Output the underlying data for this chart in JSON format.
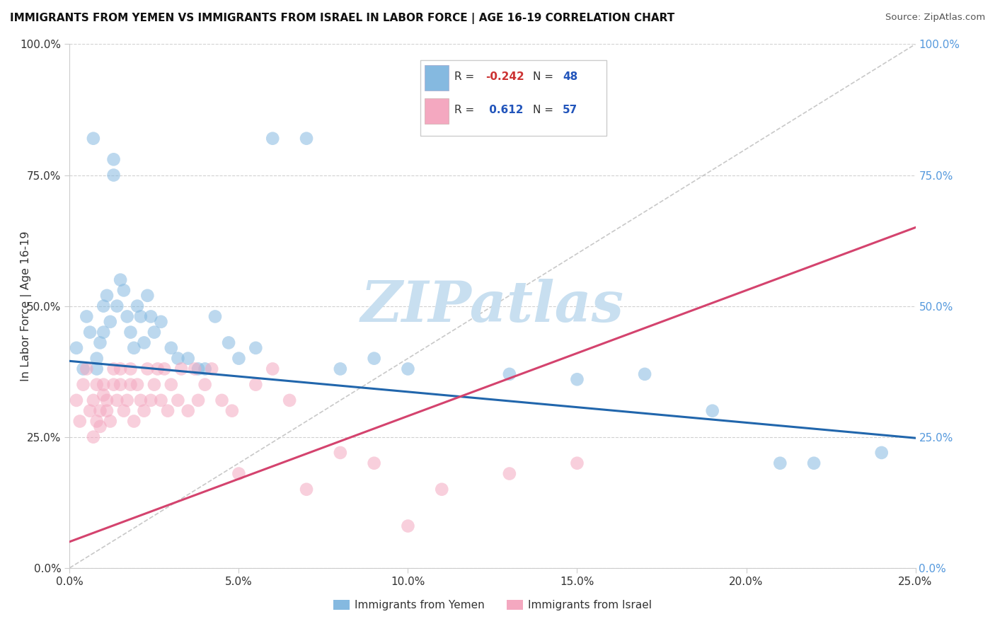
{
  "title": "IMMIGRANTS FROM YEMEN VS IMMIGRANTS FROM ISRAEL IN LABOR FORCE | AGE 16-19 CORRELATION CHART",
  "source": "Source: ZipAtlas.com",
  "ylabel": "In Labor Force | Age 16-19",
  "xlim": [
    0.0,
    0.25
  ],
  "ylim": [
    0.0,
    1.0
  ],
  "xlabel_vals": [
    0.0,
    0.05,
    0.1,
    0.15,
    0.2,
    0.25
  ],
  "xlabel_labels": [
    "0.0%",
    "5.0%",
    "10.0%",
    "15.0%",
    "20.0%",
    "25.0%"
  ],
  "ylabel_vals": [
    0.0,
    0.25,
    0.5,
    0.75,
    1.0
  ],
  "ylabel_labels": [
    "0.0%",
    "25.0%",
    "50.0%",
    "75.0%",
    "100.0%"
  ],
  "blue_R": -0.242,
  "blue_N": 48,
  "pink_R": 0.612,
  "pink_N": 57,
  "blue_label": "Immigrants from Yemen",
  "pink_label": "Immigrants from Israel",
  "blue_scatter_color": "#85b9e0",
  "pink_scatter_color": "#f4a8c0",
  "blue_trend_color": "#2166ac",
  "pink_trend_color": "#d4436e",
  "background_color": "#ffffff",
  "watermark_text": "ZIPatlas",
  "watermark_color": "#c8dff0",
  "grid_color": "#cccccc",
  "right_tick_color": "#5599dd",
  "diag_color": "#bbbbbb",
  "blue_trend_x": [
    0.0,
    0.25
  ],
  "blue_trend_y": [
    0.395,
    0.248
  ],
  "pink_trend_x": [
    0.0,
    0.25
  ],
  "pink_trend_y": [
    0.05,
    0.65
  ],
  "blue_x": [
    0.002,
    0.004,
    0.005,
    0.006,
    0.007,
    0.008,
    0.008,
    0.009,
    0.01,
    0.01,
    0.011,
    0.012,
    0.013,
    0.013,
    0.014,
    0.015,
    0.016,
    0.017,
    0.018,
    0.019,
    0.02,
    0.021,
    0.022,
    0.023,
    0.024,
    0.025,
    0.027,
    0.03,
    0.032,
    0.035,
    0.038,
    0.04,
    0.043,
    0.047,
    0.05,
    0.055,
    0.06,
    0.07,
    0.08,
    0.09,
    0.1,
    0.13,
    0.15,
    0.17,
    0.19,
    0.21,
    0.22,
    0.24
  ],
  "blue_y": [
    0.42,
    0.38,
    0.48,
    0.45,
    0.82,
    0.4,
    0.38,
    0.43,
    0.5,
    0.45,
    0.52,
    0.47,
    0.78,
    0.75,
    0.5,
    0.55,
    0.53,
    0.48,
    0.45,
    0.42,
    0.5,
    0.48,
    0.43,
    0.52,
    0.48,
    0.45,
    0.47,
    0.42,
    0.4,
    0.4,
    0.38,
    0.38,
    0.48,
    0.43,
    0.4,
    0.42,
    0.82,
    0.82,
    0.38,
    0.4,
    0.38,
    0.37,
    0.36,
    0.37,
    0.3,
    0.2,
    0.2,
    0.22
  ],
  "pink_x": [
    0.002,
    0.003,
    0.004,
    0.005,
    0.006,
    0.007,
    0.007,
    0.008,
    0.008,
    0.009,
    0.009,
    0.01,
    0.01,
    0.011,
    0.011,
    0.012,
    0.013,
    0.013,
    0.014,
    0.015,
    0.015,
    0.016,
    0.017,
    0.018,
    0.018,
    0.019,
    0.02,
    0.021,
    0.022,
    0.023,
    0.024,
    0.025,
    0.026,
    0.027,
    0.028,
    0.029,
    0.03,
    0.032,
    0.033,
    0.035,
    0.037,
    0.038,
    0.04,
    0.042,
    0.045,
    0.048,
    0.05,
    0.055,
    0.06,
    0.065,
    0.07,
    0.08,
    0.09,
    0.1,
    0.11,
    0.13,
    0.15
  ],
  "pink_y": [
    0.32,
    0.28,
    0.35,
    0.38,
    0.3,
    0.25,
    0.32,
    0.35,
    0.28,
    0.3,
    0.27,
    0.33,
    0.35,
    0.3,
    0.32,
    0.28,
    0.38,
    0.35,
    0.32,
    0.35,
    0.38,
    0.3,
    0.32,
    0.35,
    0.38,
    0.28,
    0.35,
    0.32,
    0.3,
    0.38,
    0.32,
    0.35,
    0.38,
    0.32,
    0.38,
    0.3,
    0.35,
    0.32,
    0.38,
    0.3,
    0.38,
    0.32,
    0.35,
    0.38,
    0.32,
    0.3,
    0.18,
    0.35,
    0.38,
    0.32,
    0.15,
    0.22,
    0.2,
    0.08,
    0.15,
    0.18,
    0.2
  ]
}
